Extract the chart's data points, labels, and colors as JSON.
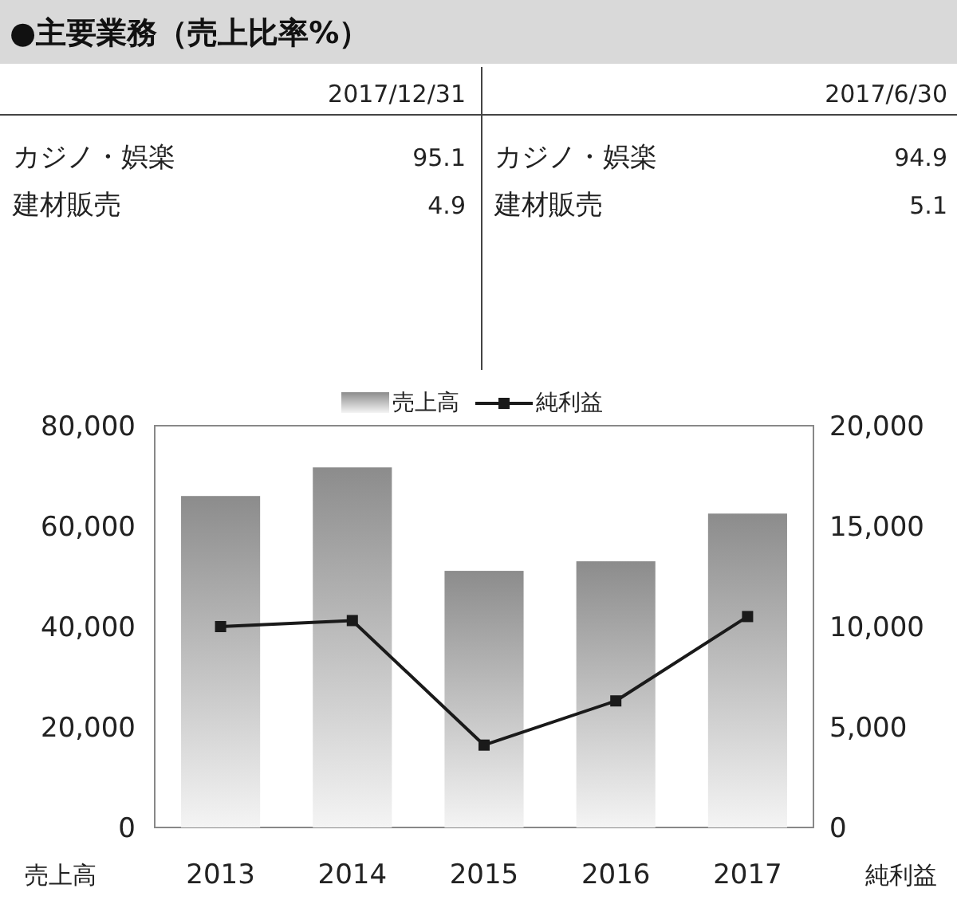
{
  "chart_data": [
    {
      "type": "other",
      "title": "●主要業務（売上比率%）",
      "annotations": [
        "2017/12/31",
        "カジノ・娯楽",
        "95.1",
        "建材販売",
        "4.9",
        "2017/6/30",
        "カジノ・娯楽",
        "94.9",
        "建材販売",
        "5.1"
      ]
    },
    {
      "type": "bar",
      "categories": [
        "2013",
        "2014",
        "2015",
        "2016",
        "2017"
      ],
      "ylabel": "売上高",
      "y2label": "純利益",
      "ylim": [
        0,
        80000
      ],
      "yticks": [
        0,
        {
          "value": 20000,
          "label": "20,000"
        },
        {
          "value": 40000,
          "label": "40,000"
        },
        {
          "value": 60000,
          "label": "60,000"
        },
        {
          "value": 80000,
          "label": "80,000"
        }
      ],
      "y2lim": [
        0,
        20000
      ],
      "y2ticks": [
        0,
        {
          "value": 5000,
          "label": "5,000"
        },
        {
          "value": 10000,
          "label": "10,000"
        },
        {
          "value": 15000,
          "label": "15,000"
        },
        {
          "value": 20000,
          "label": "20,000"
        }
      ],
      "legend": "top",
      "marker": "square",
      "series": [
        {
          "name": "売上高",
          "type": "bar",
          "color": "#8c8c8c",
          "values": [
            66000,
            71700,
            51100,
            53000,
            62500
          ]
        },
        {
          "name": "純利益",
          "type": "line",
          "axis": "y2",
          "color": "#1a1a1a",
          "values": [
            10000,
            10300,
            4100,
            6300,
            10500
          ]
        }
      ]
    }
  ]
}
